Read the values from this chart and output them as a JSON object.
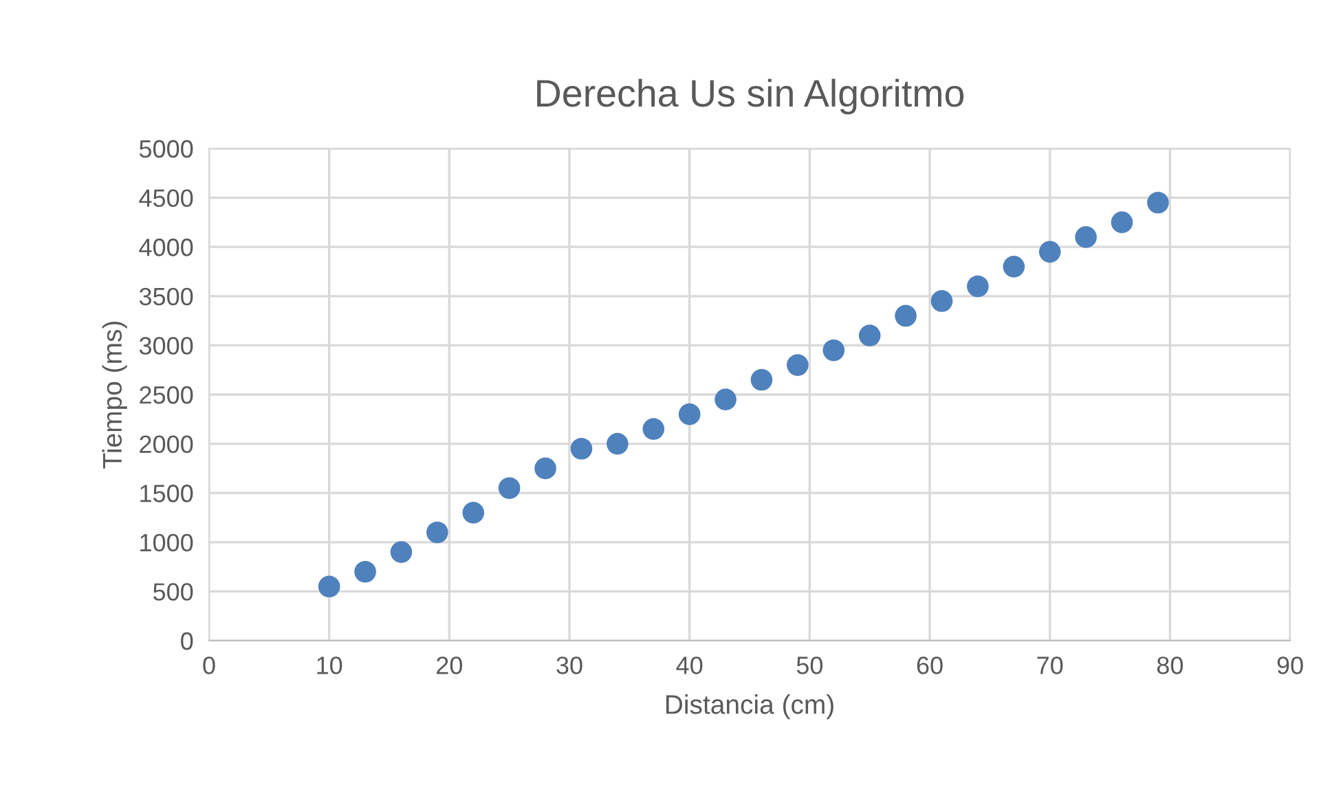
{
  "chart_data": {
    "type": "scatter",
    "title": "Derecha Us sin Algoritmo",
    "xlabel": "Distancia (cm)",
    "ylabel": "Tiempo (ms)",
    "series": [
      {
        "color": "#4f81bd",
        "x": [
          10,
          13,
          16,
          19,
          22,
          25,
          28,
          31,
          34,
          37,
          40,
          43,
          46,
          49,
          52,
          55,
          58,
          61,
          64,
          67,
          70,
          73,
          76,
          79
        ],
        "values": [
          550,
          700,
          900,
          1100,
          1300,
          1550,
          1750,
          1950,
          2000,
          2150,
          2300,
          2450,
          2650,
          2800,
          2950,
          3100,
          3300,
          3450,
          3600,
          3800,
          3950,
          4100,
          4250,
          4450
        ]
      }
    ],
    "xlim": [
      0,
      90
    ],
    "xticks": [
      0,
      10,
      20,
      30,
      40,
      50,
      60,
      70,
      80,
      90
    ],
    "ylim": [
      0,
      5000
    ],
    "yticks": [
      0,
      500,
      1000,
      1500,
      2000,
      2500,
      3000,
      3500,
      4000,
      4500,
      5000
    ],
    "grid": true,
    "marker": "circle"
  }
}
